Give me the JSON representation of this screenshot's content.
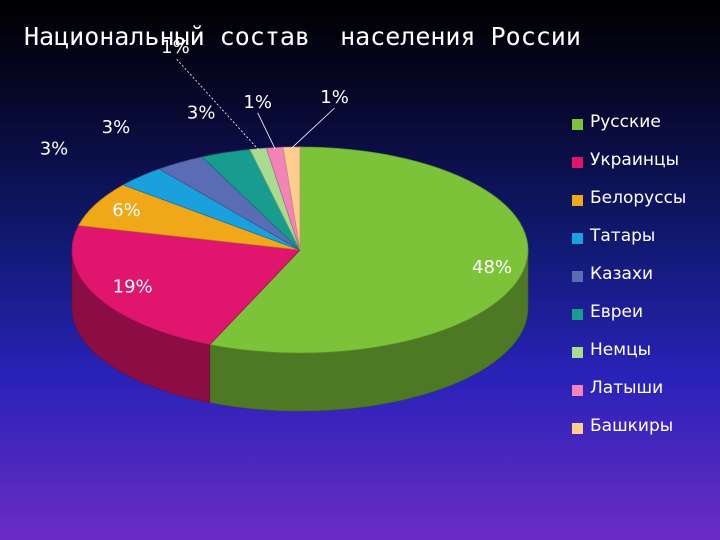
{
  "title": "Национальный состав  населения России",
  "chart_data": {
    "type": "pie",
    "title": "Национальный состав  населения России",
    "categories": [
      "Русские",
      "Украинцы",
      "Белоруссы",
      "Татары",
      "Казахи",
      "Евреи",
      "Немцы",
      "Латыши",
      "Башкиры"
    ],
    "values": [
      48,
      19,
      6,
      3,
      3,
      3,
      1,
      1,
      1
    ],
    "labels": [
      "48%",
      "19%",
      "6%",
      "3%",
      "3%",
      "3%",
      "1%",
      "1%",
      "1%"
    ],
    "colors": [
      "#7cc33a",
      "#e0156e",
      "#f0a818",
      "#1aa0dc",
      "#5a6cb4",
      "#189c90",
      "#a8dc90",
      "#f484b8",
      "#ffcc90"
    ],
    "legend_position": "right",
    "three_d": true
  }
}
